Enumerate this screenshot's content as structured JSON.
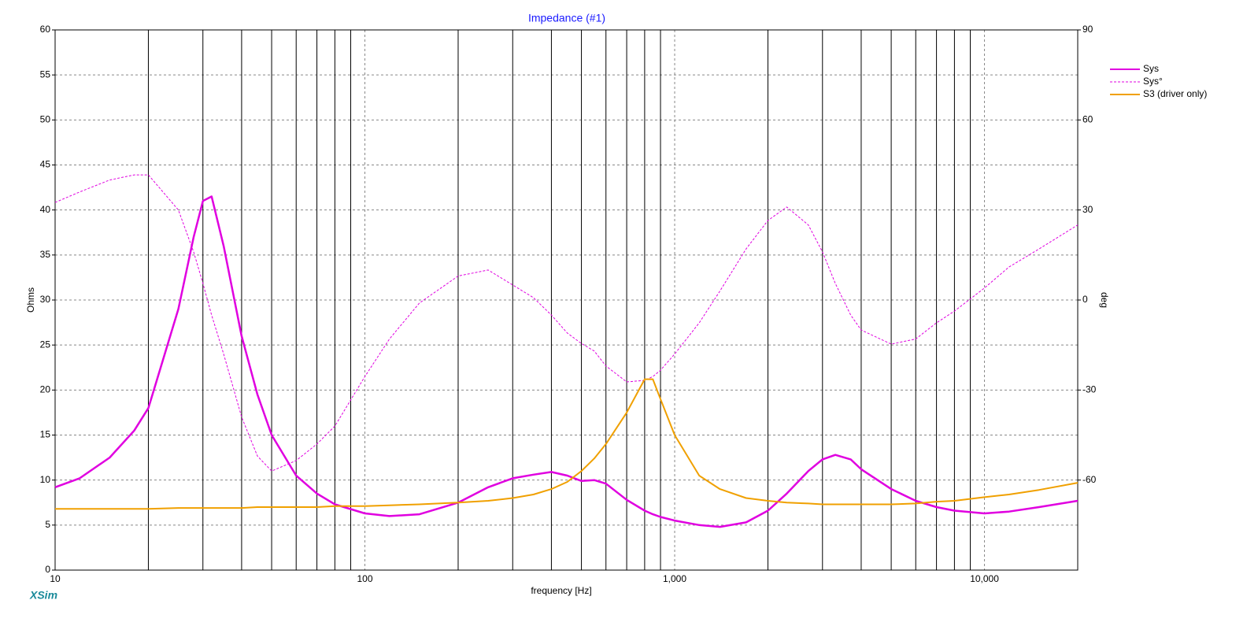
{
  "chart_data": {
    "type": "line",
    "title": "Impedance (#1)",
    "x_label": "frequency [Hz]",
    "y_label": "Ohms",
    "y2_label": "deg",
    "watermark": "XSim",
    "x_log": true,
    "grid": true,
    "legend_loc": "outside right",
    "xlim": [
      10,
      20000
    ],
    "xticks": [
      10,
      100,
      {
        "value": 1000,
        "label": "1,000"
      },
      {
        "value": 10000,
        "label": "10,000"
      }
    ],
    "xminor": [
      20,
      30,
      40,
      50,
      60,
      70,
      80,
      90,
      200,
      300,
      400,
      500,
      600,
      700,
      800,
      900,
      2000,
      3000,
      4000,
      5000,
      6000,
      7000,
      8000,
      9000
    ],
    "ylim": [
      0,
      60
    ],
    "yticks": [
      0,
      5,
      10,
      15,
      20,
      25,
      30,
      35,
      40,
      45,
      50,
      55,
      60
    ],
    "y2lim": [
      -90,
      90
    ],
    "y2ticks": [
      -60,
      -30,
      0,
      30,
      60,
      90
    ],
    "x": [
      10,
      12,
      15,
      18,
      20,
      25,
      28,
      30,
      32,
      35,
      40,
      45,
      50,
      60,
      70,
      80,
      100,
      120,
      150,
      200,
      250,
      300,
      350,
      400,
      450,
      500,
      550,
      600,
      700,
      800,
      850,
      900,
      1000,
      1200,
      1400,
      1700,
      2000,
      2300,
      2700,
      3000,
      3300,
      3700,
      4000,
      5000,
      6000,
      7000,
      8000,
      10000,
      12000,
      15000,
      20000
    ],
    "series": [
      {
        "name": "Sys",
        "color": "#e000e0",
        "linestyle": "solid",
        "linewidth": 2.5,
        "values": [
          9.2,
          10.2,
          12.5,
          15.5,
          18,
          29,
          37,
          41,
          41.5,
          36,
          26,
          19.5,
          15,
          10.5,
          8.5,
          7.3,
          6.3,
          6.0,
          6.2,
          7.5,
          9.2,
          10.2,
          10.6,
          10.9,
          10.5,
          9.9,
          10.0,
          9.6,
          7.8,
          6.6,
          6.2,
          5.9,
          5.5,
          5.0,
          4.8,
          5.3,
          6.6,
          8.5,
          11,
          12.3,
          12.8,
          12.3,
          11.2,
          9,
          7.7,
          7.0,
          6.6,
          6.3,
          6.5,
          7.0,
          7.7
        ]
      },
      {
        "name": "Sys°",
        "color": "#e000e0",
        "linestyle": "dashed",
        "linewidth": 1,
        "axis": "y2",
        "values": [
          32.5,
          36,
          40,
          41.7,
          41.7,
          30,
          16,
          5.5,
          -5,
          -18,
          -39,
          -52,
          -57,
          -53.5,
          -48,
          -42,
          -25.5,
          -13,
          -1,
          8,
          10,
          5,
          0.8,
          -5,
          -11,
          -14.5,
          -17,
          -22,
          -27.3,
          -26.8,
          -25.5,
          -23.4,
          -18,
          -7.6,
          3,
          17,
          26.5,
          31,
          25,
          16,
          5.5,
          -5,
          -10,
          -14.7,
          -13,
          -7.6,
          -3.7,
          4,
          11,
          17,
          25
        ]
      },
      {
        "name": "S3 (driver only)",
        "color": "#f0a000",
        "linestyle": "solid",
        "linewidth": 2,
        "values": [
          6.8,
          6.8,
          6.8,
          6.8,
          6.8,
          6.9,
          6.9,
          6.9,
          6.9,
          6.9,
          6.9,
          7.0,
          7.0,
          7.0,
          7.0,
          7.1,
          7.1,
          7.2,
          7.3,
          7.5,
          7.7,
          8.0,
          8.4,
          9.0,
          9.8,
          11,
          12.4,
          14,
          17.5,
          21.2,
          21.2,
          19,
          15,
          10.5,
          9,
          8,
          7.7,
          7.5,
          7.4,
          7.3,
          7.3,
          7.3,
          7.3,
          7.3,
          7.4,
          7.6,
          7.7,
          8.1,
          8.4,
          8.9,
          9.7
        ]
      }
    ]
  }
}
